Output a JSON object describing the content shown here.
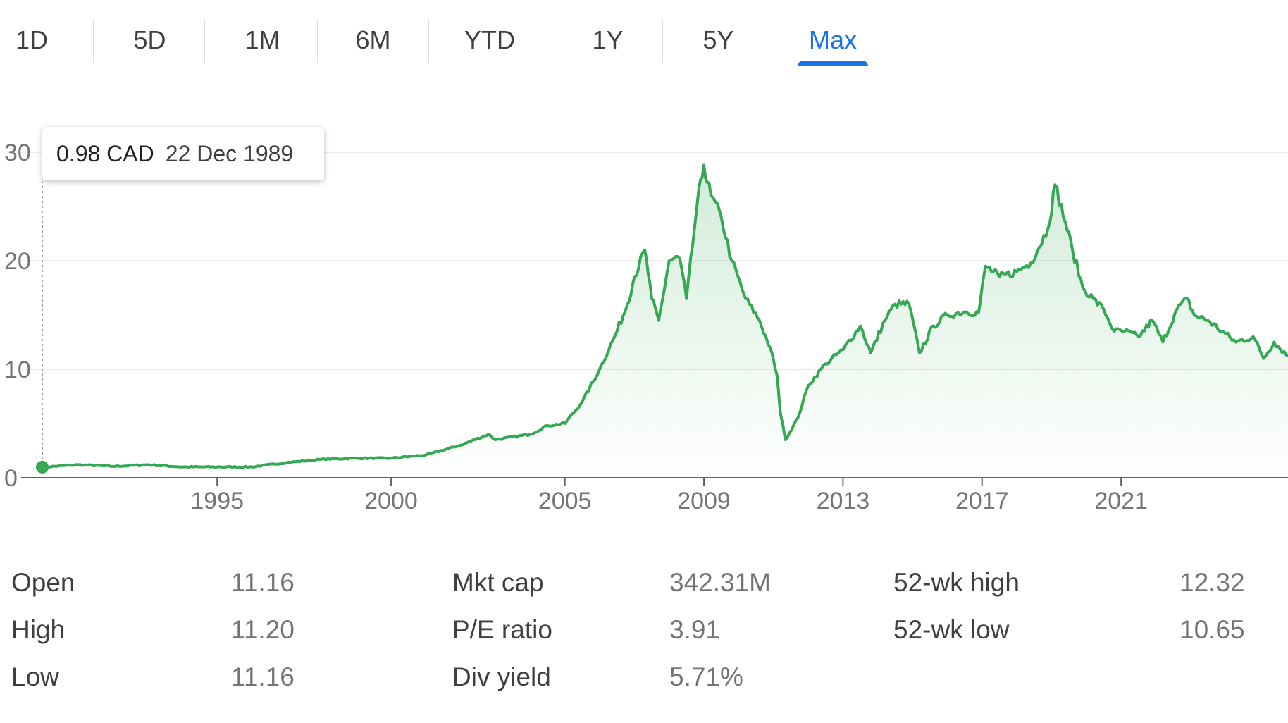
{
  "tabs": [
    {
      "label": "1D",
      "active": false
    },
    {
      "label": "5D",
      "active": false
    },
    {
      "label": "1M",
      "active": false
    },
    {
      "label": "6M",
      "active": false
    },
    {
      "label": "YTD",
      "active": false
    },
    {
      "label": "1Y",
      "active": false
    },
    {
      "label": "5Y",
      "active": false
    },
    {
      "label": "Max",
      "active": true
    }
  ],
  "tooltip": {
    "price": "0.98 CAD",
    "date": "22 Dec 1989"
  },
  "colors": {
    "line": "#34a853",
    "active_tab": "#1a73e8",
    "grid": "#ebebeb",
    "axis": "#5f6368"
  },
  "chart_data": {
    "type": "area",
    "x_unit": "year",
    "ylim": [
      0,
      30
    ],
    "xlim": [
      1989.97,
      2025.8
    ],
    "y_ticks": [
      "0",
      "10",
      "20",
      "30"
    ],
    "y_tick_values": [
      0,
      10,
      20,
      30
    ],
    "x_ticks": [
      "1995",
      "2000",
      "2005",
      "2009",
      "2013",
      "2017",
      "2021"
    ],
    "x_tick_values": [
      1995,
      2000,
      2005,
      2009,
      2013,
      2017,
      2021
    ],
    "grid": true,
    "series": [
      {
        "points": [
          [
            1989.97,
            0.98
          ],
          [
            1991,
            1.2
          ],
          [
            1992,
            1.05
          ],
          [
            1993,
            1.2
          ],
          [
            1994,
            1.0
          ],
          [
            1995,
            1.0
          ],
          [
            1996,
            1.0
          ],
          [
            1997,
            1.4
          ],
          [
            1998,
            1.7
          ],
          [
            1999,
            1.8
          ],
          [
            2000,
            1.8
          ],
          [
            2001,
            2.1
          ],
          [
            2002,
            3.0
          ],
          [
            2002.8,
            4.0
          ],
          [
            2003,
            3.5
          ],
          [
            2004,
            4.0
          ],
          [
            2004.5,
            4.8
          ],
          [
            2005,
            5.0
          ],
          [
            2005.5,
            7.0
          ],
          [
            2006,
            10.0
          ],
          [
            2006.5,
            13.5
          ],
          [
            2006.8,
            16.0
          ],
          [
            2007,
            18.5
          ],
          [
            2007.3,
            21.0
          ],
          [
            2007.5,
            16.5
          ],
          [
            2007.7,
            14.5
          ],
          [
            2008,
            20.0
          ],
          [
            2008.3,
            20.3
          ],
          [
            2008.5,
            16.5
          ],
          [
            2008.8,
            25.0
          ],
          [
            2009,
            28.8
          ],
          [
            2009.2,
            26.0
          ],
          [
            2009.5,
            24.0
          ],
          [
            2009.8,
            20.0
          ],
          [
            2010.2,
            16.5
          ],
          [
            2010.6,
            14.5
          ],
          [
            2010.9,
            12.0
          ],
          [
            2011.1,
            9.5
          ],
          [
            2011.2,
            6.0
          ],
          [
            2011.35,
            3.5
          ],
          [
            2011.7,
            5.5
          ],
          [
            2012,
            8.5
          ],
          [
            2012.5,
            10.5
          ],
          [
            2013,
            11.8
          ],
          [
            2013.5,
            14.0
          ],
          [
            2013.8,
            11.5
          ],
          [
            2014.2,
            14.5
          ],
          [
            2014.5,
            16.0
          ],
          [
            2014.9,
            16.0
          ],
          [
            2015.2,
            11.5
          ],
          [
            2015.6,
            14.0
          ],
          [
            2016,
            15.0
          ],
          [
            2016.5,
            15.3
          ],
          [
            2016.9,
            15.2
          ],
          [
            2017.1,
            19.5
          ],
          [
            2017.5,
            18.5
          ],
          [
            2018,
            19.0
          ],
          [
            2018.4,
            19.8
          ],
          [
            2018.9,
            23.0
          ],
          [
            2019.1,
            27.0
          ],
          [
            2019.4,
            23.5
          ],
          [
            2019.6,
            21.0
          ],
          [
            2019.9,
            17.5
          ],
          [
            2020.2,
            16.5
          ],
          [
            2020.5,
            15.5
          ],
          [
            2020.8,
            13.5
          ],
          [
            2021.1,
            13.5
          ],
          [
            2021.5,
            13.0
          ],
          [
            2021.9,
            14.5
          ],
          [
            2022.2,
            12.5
          ],
          [
            2022.6,
            15.5
          ],
          [
            2022.9,
            16.5
          ],
          [
            2023.1,
            15.0
          ],
          [
            2023.5,
            14.5
          ],
          [
            2023.9,
            13.5
          ],
          [
            2024.3,
            12.5
          ],
          [
            2024.8,
            13.0
          ],
          [
            2025.1,
            11.0
          ],
          [
            2025.4,
            12.5
          ],
          [
            2025.8,
            11.2
          ]
        ]
      }
    ]
  },
  "stats": [
    {
      "label": "Open",
      "value": "11.16"
    },
    {
      "label": "High",
      "value": "11.20"
    },
    {
      "label": "Low",
      "value": "11.16"
    },
    {
      "label": "Mkt cap",
      "value": "342.31M"
    },
    {
      "label": "P/E ratio",
      "value": "3.91"
    },
    {
      "label": "Div yield",
      "value": "5.71%"
    },
    {
      "label": "52-wk high",
      "value": "12.32"
    },
    {
      "label": "52-wk low",
      "value": "10.65"
    }
  ]
}
